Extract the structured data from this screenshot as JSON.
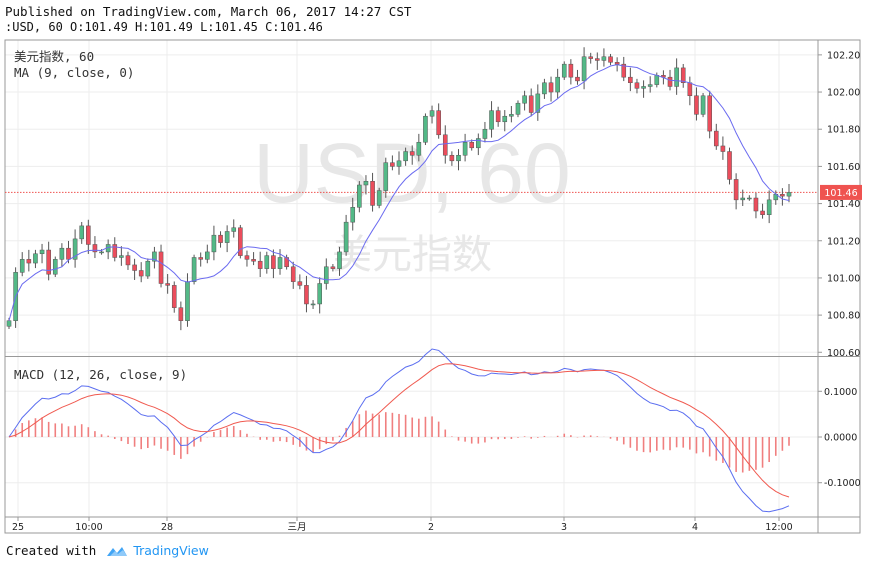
{
  "header": {
    "published": "Published on TradingView.com, March 06, 2017 14:27 CST",
    "ohlc": ":USD, 60 O:101.49 H:101.49 L:101.45 C:101.46"
  },
  "footer": {
    "created_with": "Created with",
    "brand": "TradingView"
  },
  "chart_data": {
    "type": "candlestick",
    "watermark": {
      "ticker": "USD, 60",
      "name": "美元指数"
    },
    "legend": {
      "symbol": "美元指数, 60",
      "ma": "MA (9, close, 0)",
      "macd": "MACD (12, 26, close, 9)"
    },
    "last_price": 101.46,
    "last_price_label": "101.46",
    "price_axis": {
      "ticks": [
        "100.60",
        "100.80",
        "101.00",
        "101.20",
        "101.40",
        "101.60",
        "101.80",
        "102.00",
        "102.20"
      ],
      "range": [
        100.58,
        102.28
      ]
    },
    "macd_axis": {
      "ticks": [
        "0.1000",
        "0.0000",
        "-0.1000"
      ],
      "range": [
        -0.175,
        0.175
      ]
    },
    "time_labels": [
      "25",
      "10:00",
      "28",
      "三月",
      "2",
      "3",
      "4",
      "12:00"
    ],
    "candles_close": [
      100.77,
      101.03,
      101.1,
      101.08,
      101.13,
      101.15,
      101.02,
      101.1,
      101.16,
      101.1,
      101.21,
      101.28,
      101.18,
      101.14,
      101.14,
      101.18,
      101.11,
      101.12,
      101.07,
      101.04,
      101.01,
      101.09,
      101.14,
      100.97,
      100.96,
      100.84,
      100.77,
      100.98,
      101.11,
      101.1,
      101.14,
      101.23,
      101.19,
      101.25,
      101.27,
      101.12,
      101.1,
      101.09,
      101.05,
      101.12,
      101.05,
      101.11,
      101.06,
      100.98,
      100.96,
      100.86,
      100.86,
      100.97,
      101.06,
      101.05,
      101.14,
      101.3,
      101.38,
      101.5,
      101.52,
      101.39,
      101.47,
      101.62,
      101.6,
      101.63,
      101.68,
      101.66,
      101.73,
      101.87,
      101.9,
      101.77,
      101.66,
      101.63,
      101.66,
      101.73,
      101.7,
      101.75,
      101.8,
      101.9,
      101.84,
      101.87,
      101.88,
      101.94,
      101.98,
      101.89,
      101.99,
      102.05,
      102.0,
      102.08,
      102.15,
      102.08,
      102.06,
      102.19,
      102.18,
      102.17,
      102.19,
      102.16,
      102.15,
      102.08,
      102.05,
      102.02,
      102.03,
      102.04,
      102.09,
      102.08,
      102.03,
      102.13,
      102.05,
      101.98,
      101.88,
      101.98,
      101.79,
      101.71,
      101.68,
      101.53,
      101.42,
      101.43,
      101.43,
      101.36,
      101.34,
      101.42,
      101.45,
      101.44,
      101.46
    ]
  }
}
